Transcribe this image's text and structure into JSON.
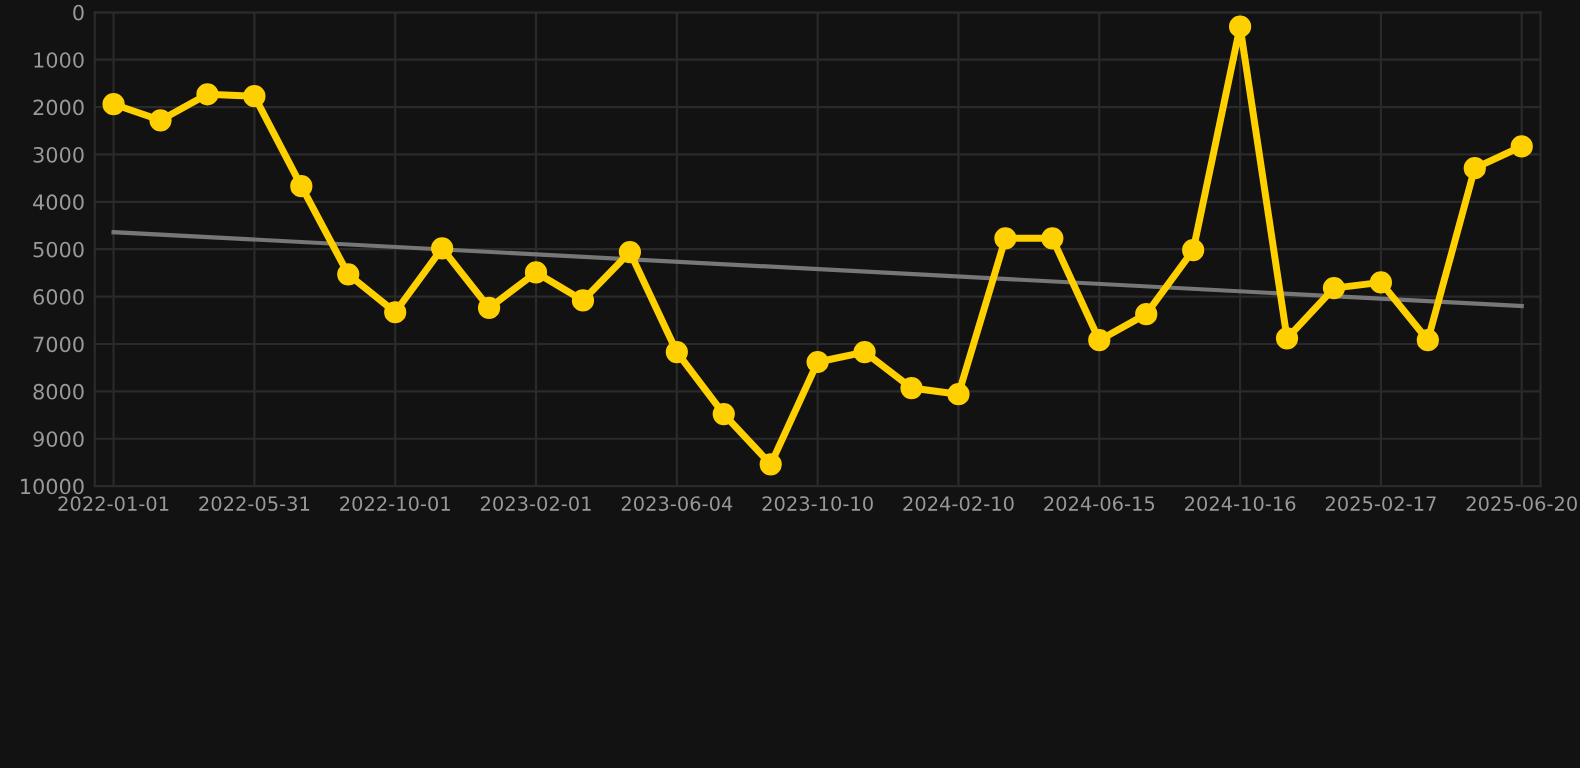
{
  "chart_data": {
    "type": "line",
    "categories": [
      "2022-01-01",
      null,
      null,
      "2022-05-31",
      null,
      null,
      "2022-10-01",
      null,
      null,
      "2023-02-01",
      null,
      null,
      "2023-06-04",
      null,
      null,
      "2023-10-10",
      null,
      null,
      "2024-02-10",
      null,
      null,
      "2024-06-15",
      null,
      null,
      "2024-10-16",
      null,
      null,
      "2025-02-17",
      null,
      null,
      "2025-06-20"
    ],
    "series": [
      {
        "color": "#ffd000",
        "marker": "circle",
        "values": [
          1940,
          2280,
          1730,
          1770,
          3670,
          5530,
          6330,
          4980,
          6240,
          5490,
          6080,
          5060,
          7170,
          8480,
          9540,
          7380,
          7170,
          7930,
          8060,
          4770,
          4770,
          6920,
          6370,
          5020,
          300,
          6880,
          5820,
          5700,
          6920,
          3290,
          2830
        ]
      },
      {
        "type": "line",
        "color": "#777777",
        "marker": "none",
        "values": [
          4640,
          null,
          null,
          null,
          null,
          null,
          null,
          null,
          null,
          null,
          null,
          null,
          null,
          null,
          null,
          null,
          null,
          null,
          null,
          null,
          null,
          null,
          null,
          null,
          null,
          null,
          null,
          null,
          null,
          null,
          6200
        ]
      }
    ],
    "ylim": [
      10000,
      0
    ],
    "yticks": [
      0,
      1000,
      2000,
      3000,
      4000,
      5000,
      6000,
      7000,
      8000,
      9000,
      10000
    ],
    "grid": true
  }
}
